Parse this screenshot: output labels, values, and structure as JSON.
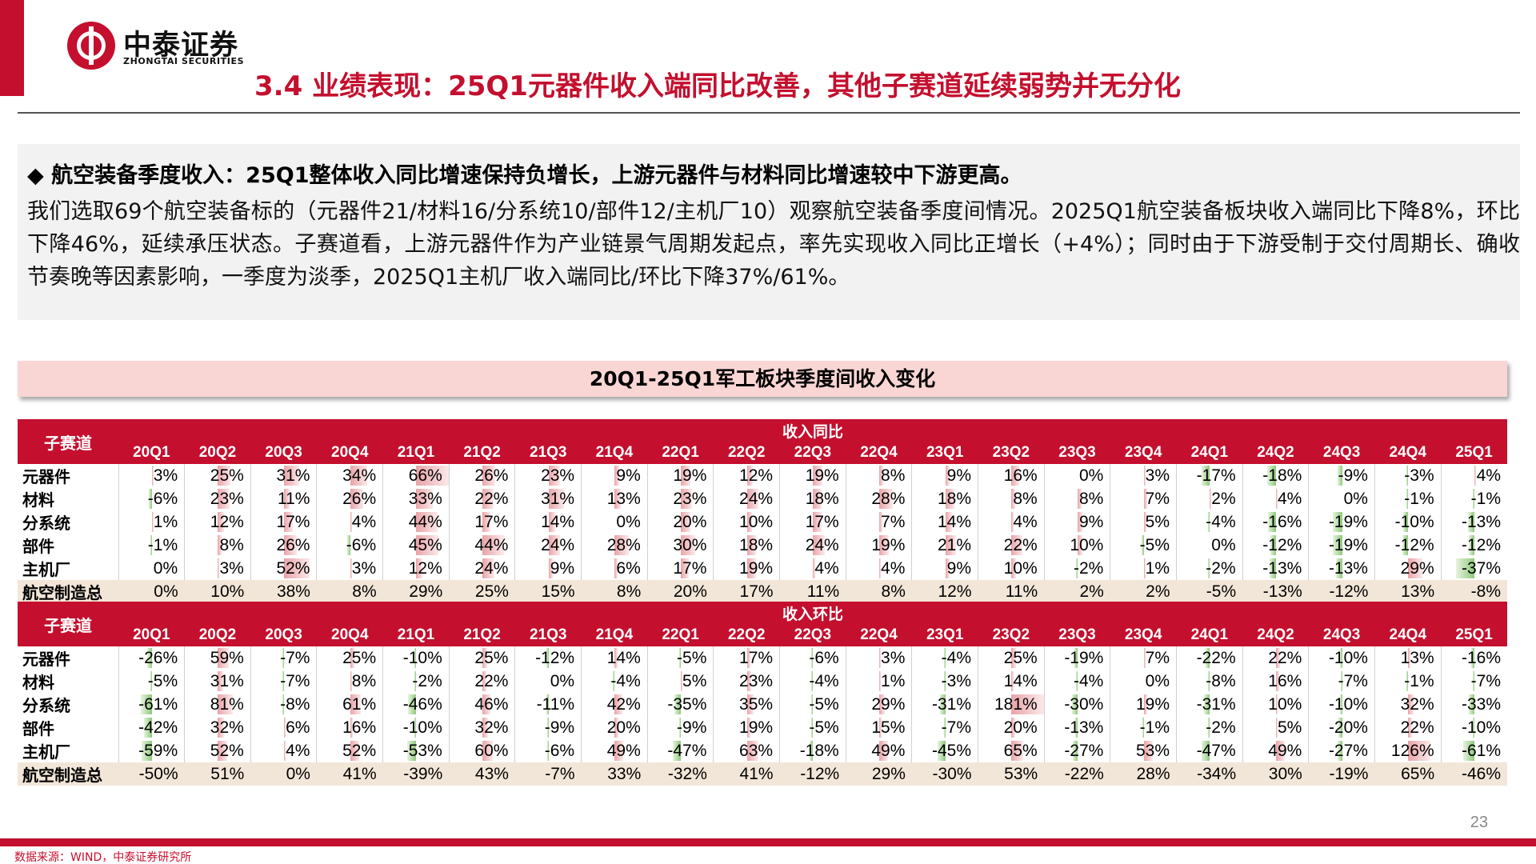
{
  "header": {
    "logo_cn": "中泰证券",
    "logo_en": "ZHONGTAI SECURITIES",
    "title": "3.4 业绩表现：25Q1元器件收入端同比改善，其他子赛道延续弱势并无分化"
  },
  "summary": {
    "heading": "◆ 航空装备季度收入：25Q1整体收入同比增速保持负增长，上游元器件与材料同比增速较中下游更高。",
    "body": "我们选取69个航空装备标的（元器件21/材料16/分系统10/部件12/主机厂10）观察航空装备季度间情况。2025Q1航空装备板块收入端同比下降8%，环比下降46%，延续承压状态。子赛道看，上游元器件作为产业链景气周期发起点，率先实现收入同比正增长（+4%）；同时由于下游受制于交付周期长、确收节奏晚等因素影响，一季度为淡季，2025Q1主机厂收入端同比/环比下降37%/61%。"
  },
  "chart_data": {
    "type": "table",
    "title": "20Q1-25Q1军工板块季度间收入变化",
    "row_header": "子赛道",
    "quarters": [
      "20Q1",
      "20Q2",
      "20Q3",
      "20Q4",
      "21Q1",
      "21Q2",
      "21Q3",
      "21Q4",
      "22Q1",
      "22Q2",
      "22Q3",
      "22Q4",
      "23Q1",
      "23Q2",
      "23Q3",
      "23Q4",
      "24Q1",
      "24Q2",
      "24Q3",
      "24Q4",
      "25Q1"
    ],
    "positive_color": "#e8a3a8",
    "negative_color": "#8fc87a",
    "tables": [
      {
        "group": "收入同比",
        "scale": 66,
        "rows": [
          {
            "name": "元器件",
            "values": [
              3,
              25,
              31,
              34,
              66,
              26,
              23,
              9,
              19,
              12,
              19,
              8,
              9,
              16,
              0,
              3,
              -17,
              -18,
              -9,
              -3,
              4
            ]
          },
          {
            "name": "材料",
            "values": [
              -6,
              23,
              11,
              26,
              33,
              22,
              31,
              13,
              23,
              24,
              18,
              28,
              18,
              8,
              8,
              7,
              2,
              4,
              0,
              -1,
              -1
            ]
          },
          {
            "name": "分系统",
            "values": [
              1,
              12,
              17,
              4,
              44,
              17,
              14,
              0,
              20,
              10,
              17,
              7,
              14,
              4,
              9,
              5,
              -4,
              -16,
              -19,
              -10,
              -13
            ]
          },
          {
            "name": "部件",
            "values": [
              -1,
              8,
              26,
              -6,
              45,
              44,
              24,
              28,
              30,
              18,
              24,
              19,
              21,
              22,
              10,
              -5,
              0,
              -12,
              -19,
              -12,
              -12
            ]
          },
          {
            "name": "主机厂",
            "values": [
              0,
              3,
              52,
              3,
              12,
              24,
              9,
              6,
              17,
              19,
              4,
              4,
              9,
              10,
              -2,
              1,
              -2,
              -13,
              -13,
              29,
              -37
            ]
          }
        ],
        "total": {
          "name": "航空制造总",
          "values": [
            0,
            10,
            38,
            8,
            29,
            25,
            15,
            8,
            20,
            17,
            11,
            8,
            12,
            11,
            2,
            2,
            -5,
            -13,
            -12,
            13,
            -8
          ]
        }
      },
      {
        "group": "收入环比",
        "scale": 181,
        "rows": [
          {
            "name": "元器件",
            "values": [
              -26,
              59,
              -7,
              25,
              -10,
              25,
              -12,
              14,
              -5,
              17,
              -6,
              3,
              -4,
              25,
              -19,
              7,
              -22,
              22,
              -10,
              13,
              -16
            ]
          },
          {
            "name": "材料",
            "values": [
              -5,
              31,
              -7,
              8,
              -2,
              22,
              0,
              -4,
              5,
              23,
              -4,
              1,
              -3,
              14,
              -4,
              0,
              -8,
              16,
              -7,
              -1,
              -7
            ]
          },
          {
            "name": "分系统",
            "values": [
              -61,
              81,
              -8,
              61,
              -46,
              46,
              -11,
              42,
              -35,
              35,
              -5,
              29,
              -31,
              181,
              -30,
              19,
              -31,
              10,
              -10,
              32,
              -33
            ]
          },
          {
            "name": "部件",
            "values": [
              -42,
              32,
              6,
              16,
              -10,
              32,
              -9,
              20,
              -9,
              19,
              -5,
              15,
              -7,
              20,
              -13,
              -1,
              -2,
              5,
              -20,
              22,
              -10
            ]
          },
          {
            "name": "主机厂",
            "values": [
              -59,
              52,
              4,
              52,
              -53,
              60,
              -6,
              49,
              -47,
              63,
              -18,
              49,
              -45,
              65,
              -27,
              53,
              -47,
              49,
              -27,
              126,
              -61
            ]
          }
        ],
        "total": {
          "name": "航空制造总",
          "values": [
            -50,
            51,
            0,
            41,
            -39,
            43,
            -7,
            33,
            -32,
            41,
            -12,
            29,
            -30,
            53,
            -22,
            28,
            -34,
            30,
            -19,
            65,
            -46
          ]
        }
      }
    ]
  },
  "footer": {
    "page_number": "23",
    "source": "数据来源：WIND，中泰证券研究所"
  }
}
